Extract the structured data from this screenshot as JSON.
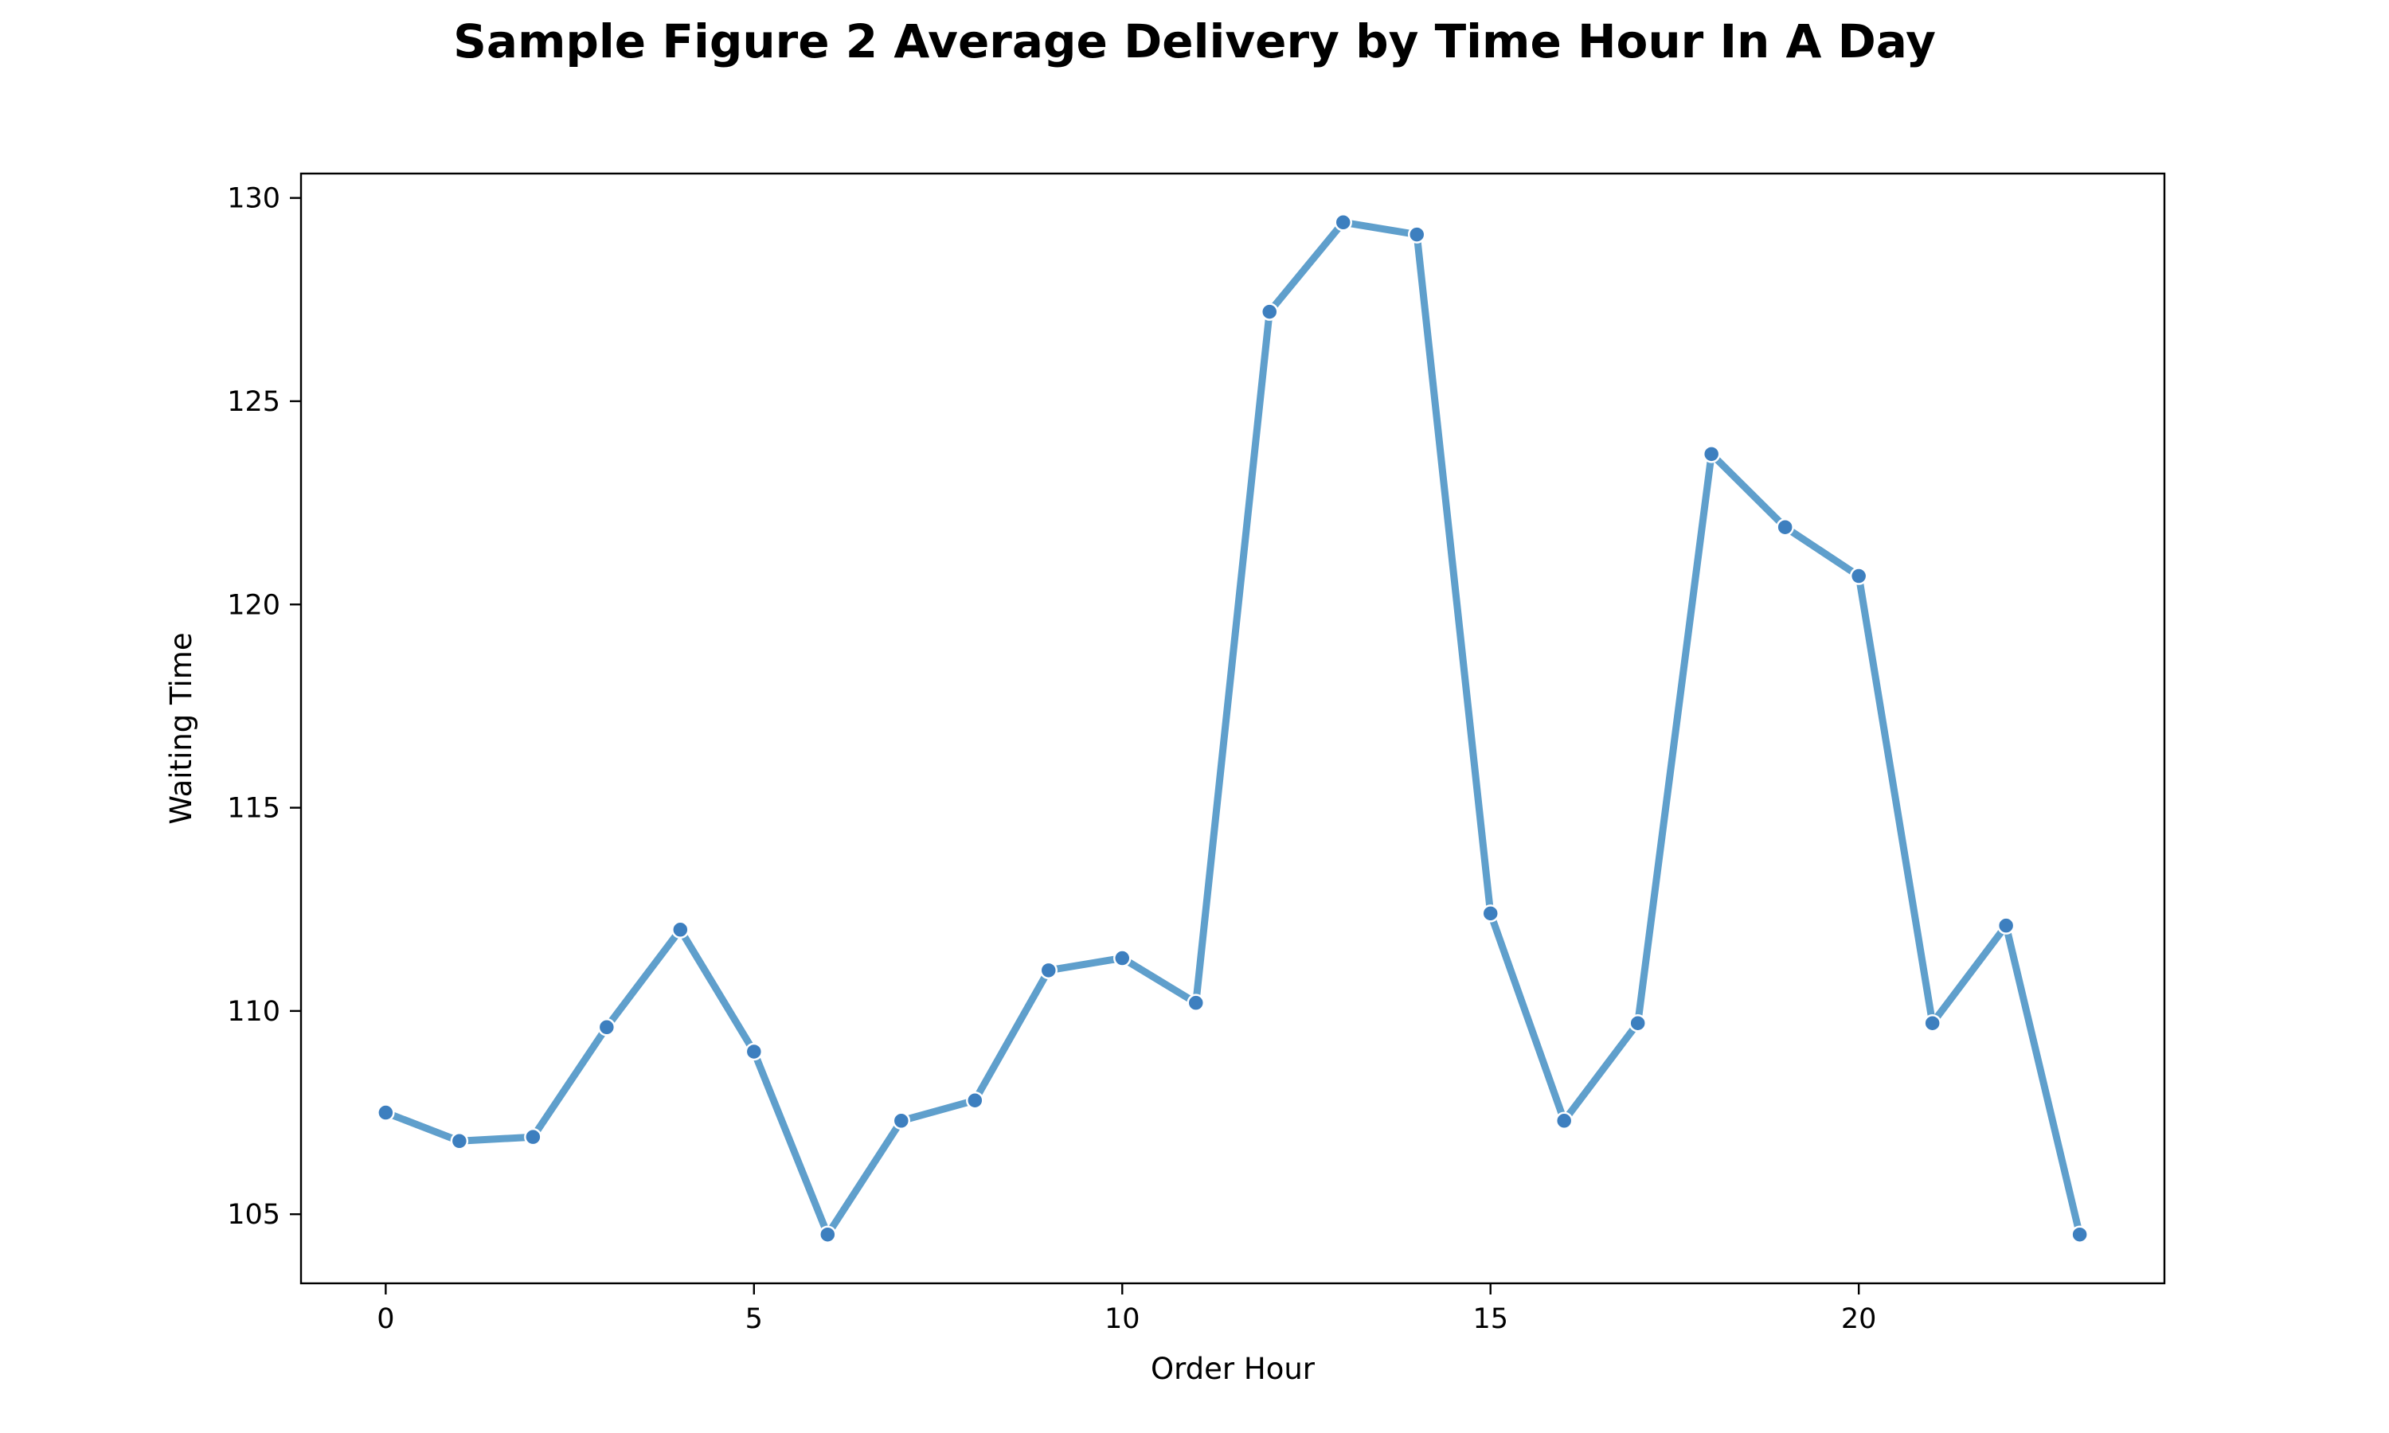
{
  "chart_data": {
    "type": "line",
    "title": "Sample Figure 2 Average Delivery by Time Hour In A Day",
    "xlabel": "Order Hour",
    "ylabel": "Waiting Time",
    "xlim": [
      -1.15,
      24.15
    ],
    "ylim": [
      103.3,
      130.6
    ],
    "xticks": [
      0,
      5,
      10,
      15,
      20
    ],
    "yticks": [
      105,
      110,
      115,
      120,
      125,
      130
    ],
    "grid": false,
    "legend": "none",
    "colors": {
      "line": "#5f9fcc",
      "marker": "#3d7fbf",
      "marker_edge": "#ffffff"
    },
    "series": [
      {
        "x": [
          0,
          1,
          2,
          3,
          4,
          5,
          6,
          7,
          8,
          9,
          10,
          11,
          12,
          13,
          14,
          15,
          16,
          17,
          18,
          19,
          20,
          21,
          22,
          23
        ],
        "values": [
          107.5,
          106.8,
          106.9,
          109.6,
          112.0,
          109.0,
          104.5,
          107.3,
          107.8,
          111.0,
          111.3,
          110.2,
          127.2,
          129.4,
          129.1,
          112.4,
          107.3,
          109.7,
          123.7,
          121.9,
          120.7,
          109.7,
          112.1,
          104.5
        ]
      }
    ]
  }
}
